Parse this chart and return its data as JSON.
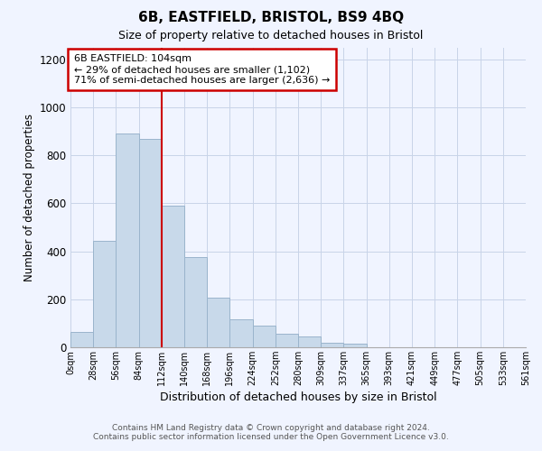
{
  "title": "6B, EASTFIELD, BRISTOL, BS9 4BQ",
  "subtitle": "Size of property relative to detached houses in Bristol",
  "xlabel": "Distribution of detached houses by size in Bristol",
  "ylabel": "Number of detached properties",
  "bar_values": [
    65,
    445,
    890,
    870,
    590,
    375,
    205,
    115,
    90,
    55,
    45,
    20,
    15,
    0,
    0,
    0,
    0,
    0,
    0,
    0
  ],
  "bar_color": "#c8d9ea",
  "bar_edge_color": "#9ab4cc",
  "x_tick_labels": [
    "0sqm",
    "28sqm",
    "56sqm",
    "84sqm",
    "112sqm",
    "140sqm",
    "168sqm",
    "196sqm",
    "224sqm",
    "252sqm",
    "280sqm",
    "309sqm",
    "337sqm",
    "365sqm",
    "393sqm",
    "421sqm",
    "449sqm",
    "477sqm",
    "505sqm",
    "533sqm",
    "561sqm"
  ],
  "ylim": [
    0,
    1250
  ],
  "yticks": [
    0,
    200,
    400,
    600,
    800,
    1000,
    1200
  ],
  "vline_color": "#cc0000",
  "annotation_title": "6B EASTFIELD: 104sqm",
  "annotation_line1": "← 29% of detached houses are smaller (1,102)",
  "annotation_line2": "71% of semi-detached houses are larger (2,636) →",
  "annotation_box_color": "#cc0000",
  "footnote1": "Contains HM Land Registry data © Crown copyright and database right 2024.",
  "footnote2": "Contains public sector information licensed under the Open Government Licence v3.0.",
  "background_color": "#f0f4ff",
  "grid_color": "#c8d4e8"
}
